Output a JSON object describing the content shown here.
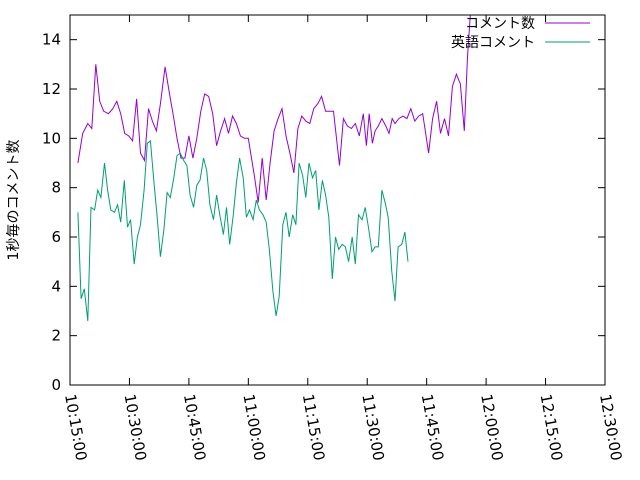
{
  "chart_data": {
    "type": "line",
    "ylabel": "1秒毎のコメント数",
    "xlabel": "",
    "ylim": [
      0,
      15
    ],
    "yticks": [
      0,
      2,
      4,
      6,
      8,
      10,
      12,
      14
    ],
    "xlim_minutes": [
      615,
      750
    ],
    "xticks": [
      {
        "m": 615,
        "label": "10:15:00"
      },
      {
        "m": 630,
        "label": "10:30:00"
      },
      {
        "m": 645,
        "label": "10:45:00"
      },
      {
        "m": 660,
        "label": "11:00:00"
      },
      {
        "m": 675,
        "label": "11:15:00"
      },
      {
        "m": 690,
        "label": "11:30:00"
      },
      {
        "m": 705,
        "label": "11:45:00"
      },
      {
        "m": 720,
        "label": "12:00:00"
      },
      {
        "m": 735,
        "label": "12:15:00"
      },
      {
        "m": 750,
        "label": "12:30:00"
      }
    ],
    "legend_position": "top-right",
    "grid": false,
    "series": [
      {
        "name": "コメント数",
        "color": "#9400d3",
        "points": [
          [
            617.0,
            9.0
          ],
          [
            618.2,
            10.2
          ],
          [
            619.5,
            10.6
          ],
          [
            620.5,
            10.4
          ],
          [
            621.5,
            13.0
          ],
          [
            622.5,
            11.5
          ],
          [
            623.5,
            11.1
          ],
          [
            624.7,
            11.0
          ],
          [
            625.8,
            11.2
          ],
          [
            626.8,
            11.5
          ],
          [
            627.8,
            11.0
          ],
          [
            628.8,
            10.2
          ],
          [
            629.8,
            10.1
          ],
          [
            630.8,
            9.9
          ],
          [
            631.8,
            11.6
          ],
          [
            632.8,
            9.4
          ],
          [
            633.8,
            9.1
          ],
          [
            634.8,
            11.2
          ],
          [
            635.8,
            10.7
          ],
          [
            636.8,
            10.3
          ],
          [
            637.8,
            11.4
          ],
          [
            639.0,
            12.9
          ],
          [
            640.0,
            11.9
          ],
          [
            641.0,
            11.0
          ],
          [
            642.0,
            10.0
          ],
          [
            643.0,
            9.2
          ],
          [
            644.0,
            9.2
          ],
          [
            645.0,
            10.1
          ],
          [
            646.0,
            9.2
          ],
          [
            647.0,
            10.0
          ],
          [
            648.0,
            11.1
          ],
          [
            649.0,
            11.8
          ],
          [
            650.0,
            11.7
          ],
          [
            651.0,
            11.0
          ],
          [
            652.0,
            9.7
          ],
          [
            653.0,
            10.3
          ],
          [
            654.0,
            10.8
          ],
          [
            655.0,
            10.2
          ],
          [
            656.0,
            10.9
          ],
          [
            657.0,
            10.6
          ],
          [
            658.0,
            10.1
          ],
          [
            659.0,
            10.0
          ],
          [
            660.0,
            10.0
          ],
          [
            661.5,
            8.5
          ],
          [
            662.5,
            7.4
          ],
          [
            663.5,
            9.2
          ],
          [
            664.5,
            7.5
          ],
          [
            665.5,
            9.0
          ],
          [
            666.5,
            10.3
          ],
          [
            667.5,
            10.8
          ],
          [
            668.5,
            11.2
          ],
          [
            669.5,
            10.1
          ],
          [
            670.5,
            9.4
          ],
          [
            671.5,
            8.6
          ],
          [
            672.5,
            10.4
          ],
          [
            673.5,
            10.9
          ],
          [
            674.5,
            10.7
          ],
          [
            675.5,
            10.6
          ],
          [
            676.5,
            11.2
          ],
          [
            677.5,
            11.4
          ],
          [
            678.5,
            11.7
          ],
          [
            679.5,
            11.1
          ],
          [
            680.5,
            11.1
          ],
          [
            681.5,
            11.1
          ],
          [
            683.0,
            8.9
          ],
          [
            684.0,
            10.8
          ],
          [
            685.0,
            10.5
          ],
          [
            686.0,
            10.4
          ],
          [
            687.0,
            10.6
          ],
          [
            688.0,
            10.1
          ],
          [
            689.0,
            11.0
          ],
          [
            689.8,
            9.7
          ],
          [
            690.5,
            11.0
          ],
          [
            691.3,
            9.8
          ],
          [
            692.0,
            10.3
          ],
          [
            692.8,
            10.5
          ],
          [
            693.7,
            10.8
          ],
          [
            694.7,
            10.5
          ],
          [
            695.5,
            10.2
          ],
          [
            696.3,
            10.8
          ],
          [
            697.0,
            10.6
          ],
          [
            698.0,
            10.8
          ],
          [
            699.0,
            10.9
          ],
          [
            700.0,
            10.8
          ],
          [
            701.0,
            11.2
          ],
          [
            702.0,
            10.7
          ],
          [
            703.0,
            10.9
          ],
          [
            704.0,
            11.0
          ],
          [
            705.5,
            9.4
          ],
          [
            706.5,
            10.8
          ],
          [
            707.5,
            11.5
          ],
          [
            708.5,
            10.2
          ],
          [
            709.5,
            10.8
          ],
          [
            710.5,
            10.1
          ],
          [
            711.5,
            12.1
          ],
          [
            712.5,
            12.6
          ],
          [
            713.5,
            12.2
          ],
          [
            714.5,
            10.3
          ],
          [
            715.3,
            13.3
          ],
          [
            716.0,
            15.2
          ]
        ]
      },
      {
        "name": "英語コメント",
        "color": "#009e73",
        "points": [
          [
            617.0,
            7.0
          ],
          [
            617.8,
            3.5
          ],
          [
            618.6,
            3.9
          ],
          [
            619.5,
            2.6
          ],
          [
            620.3,
            7.2
          ],
          [
            621.2,
            7.1
          ],
          [
            622.0,
            7.9
          ],
          [
            622.8,
            7.6
          ],
          [
            623.7,
            9.0
          ],
          [
            624.5,
            7.9
          ],
          [
            625.3,
            7.1
          ],
          [
            626.2,
            7.0
          ],
          [
            627.0,
            7.3
          ],
          [
            627.8,
            6.6
          ],
          [
            628.7,
            8.3
          ],
          [
            629.5,
            6.4
          ],
          [
            630.3,
            6.7
          ],
          [
            631.2,
            4.9
          ],
          [
            632.0,
            6.0
          ],
          [
            632.8,
            6.5
          ],
          [
            633.7,
            7.9
          ],
          [
            634.5,
            9.8
          ],
          [
            635.3,
            9.9
          ],
          [
            636.2,
            8.2
          ],
          [
            637.0,
            6.8
          ],
          [
            637.8,
            5.2
          ],
          [
            638.7,
            6.3
          ],
          [
            639.5,
            7.8
          ],
          [
            640.3,
            7.6
          ],
          [
            641.2,
            8.4
          ],
          [
            642.0,
            9.3
          ],
          [
            642.8,
            9.4
          ],
          [
            643.7,
            9.1
          ],
          [
            644.5,
            8.9
          ],
          [
            645.3,
            7.7
          ],
          [
            646.2,
            7.2
          ],
          [
            647.0,
            8.1
          ],
          [
            647.8,
            8.3
          ],
          [
            648.7,
            9.2
          ],
          [
            649.5,
            8.7
          ],
          [
            650.3,
            7.3
          ],
          [
            651.2,
            6.7
          ],
          [
            652.0,
            7.7
          ],
          [
            652.8,
            6.9
          ],
          [
            653.7,
            6.1
          ],
          [
            654.5,
            7.2
          ],
          [
            655.3,
            5.7
          ],
          [
            656.2,
            6.9
          ],
          [
            657.0,
            8.2
          ],
          [
            657.8,
            9.2
          ],
          [
            658.7,
            8.4
          ],
          [
            659.5,
            6.8
          ],
          [
            660.3,
            7.1
          ],
          [
            661.2,
            6.7
          ],
          [
            662.0,
            7.5
          ],
          [
            662.8,
            7.1
          ],
          [
            663.7,
            6.9
          ],
          [
            664.5,
            6.6
          ],
          [
            665.3,
            5.5
          ],
          [
            666.2,
            3.8
          ],
          [
            667.0,
            2.8
          ],
          [
            667.8,
            3.6
          ],
          [
            668.7,
            6.5
          ],
          [
            669.5,
            7.0
          ],
          [
            670.3,
            6.0
          ],
          [
            671.2,
            6.9
          ],
          [
            672.0,
            6.5
          ],
          [
            672.8,
            9.0
          ],
          [
            673.7,
            8.5
          ],
          [
            674.5,
            7.6
          ],
          [
            675.3,
            9.0
          ],
          [
            676.2,
            8.4
          ],
          [
            677.0,
            8.7
          ],
          [
            677.8,
            7.1
          ],
          [
            678.7,
            8.3
          ],
          [
            679.5,
            7.7
          ],
          [
            680.3,
            6.8
          ],
          [
            681.2,
            4.3
          ],
          [
            682.0,
            6.0
          ],
          [
            682.8,
            5.5
          ],
          [
            683.7,
            5.7
          ],
          [
            684.5,
            5.6
          ],
          [
            685.3,
            5.0
          ],
          [
            686.2,
            6.0
          ],
          [
            687.0,
            4.9
          ],
          [
            687.8,
            6.9
          ],
          [
            688.7,
            6.7
          ],
          [
            689.5,
            7.2
          ],
          [
            690.3,
            6.4
          ],
          [
            691.2,
            5.4
          ],
          [
            692.0,
            5.6
          ],
          [
            692.8,
            5.6
          ],
          [
            693.7,
            7.9
          ],
          [
            694.5,
            7.4
          ],
          [
            695.3,
            6.8
          ],
          [
            696.2,
            4.6
          ],
          [
            697.0,
            3.4
          ],
          [
            697.8,
            5.6
          ],
          [
            698.7,
            5.7
          ],
          [
            699.5,
            6.2
          ],
          [
            700.3,
            5.0
          ]
        ]
      }
    ]
  }
}
